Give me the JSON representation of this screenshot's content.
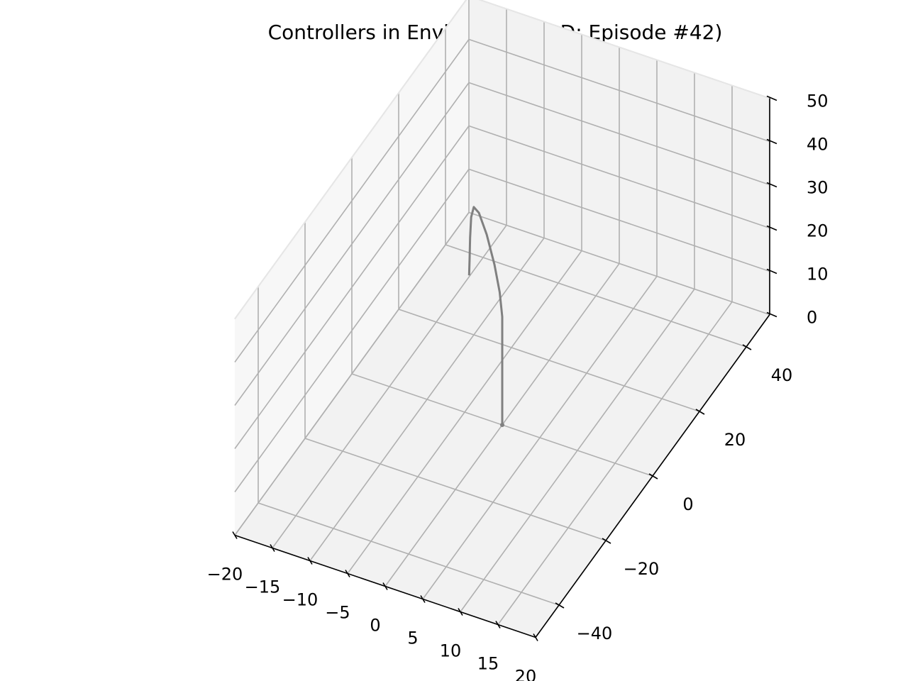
{
  "chart_data": {
    "type": "line3d",
    "title": "Controllers in Environment (3D; Episode #42)",
    "xlabel": "",
    "ylabel": "",
    "zlabel": "",
    "x_ticks": [
      "−20",
      "−15",
      "−10",
      "−5",
      "0",
      "5",
      "10",
      "15",
      "20"
    ],
    "y_ticks": [
      "−40",
      "−20",
      "0",
      "20",
      "40"
    ],
    "z_ticks": [
      "0",
      "10",
      "20",
      "30",
      "40",
      "50"
    ],
    "xlim": [
      -20,
      20
    ],
    "ylim": [
      -50,
      50
    ],
    "zlim": [
      0,
      50
    ],
    "grid": true,
    "legend": "none",
    "colors": {
      "trajectory": "#808080",
      "pane_light": "#f7f7f7",
      "pane_mid": "#f2f2f2",
      "pane_dark": "#ebebeb"
    },
    "series": [
      {
        "x": [
          0,
          0,
          0,
          0,
          0,
          0,
          -0.5,
          -1.5,
          -3.0,
          -4.5,
          -5.5,
          -6.0,
          -6.2,
          -6.3,
          -6.4
        ],
        "y": [
          0,
          0,
          0,
          0,
          0,
          0,
          0.5,
          1.5,
          3.0,
          4.5,
          5.5,
          6.0,
          6.2,
          6.3,
          6.4
        ],
        "z": [
          0,
          5,
          10,
          15,
          20,
          25,
          30,
          35,
          40,
          43,
          43,
          40,
          35,
          30,
          26
        ]
      }
    ]
  }
}
